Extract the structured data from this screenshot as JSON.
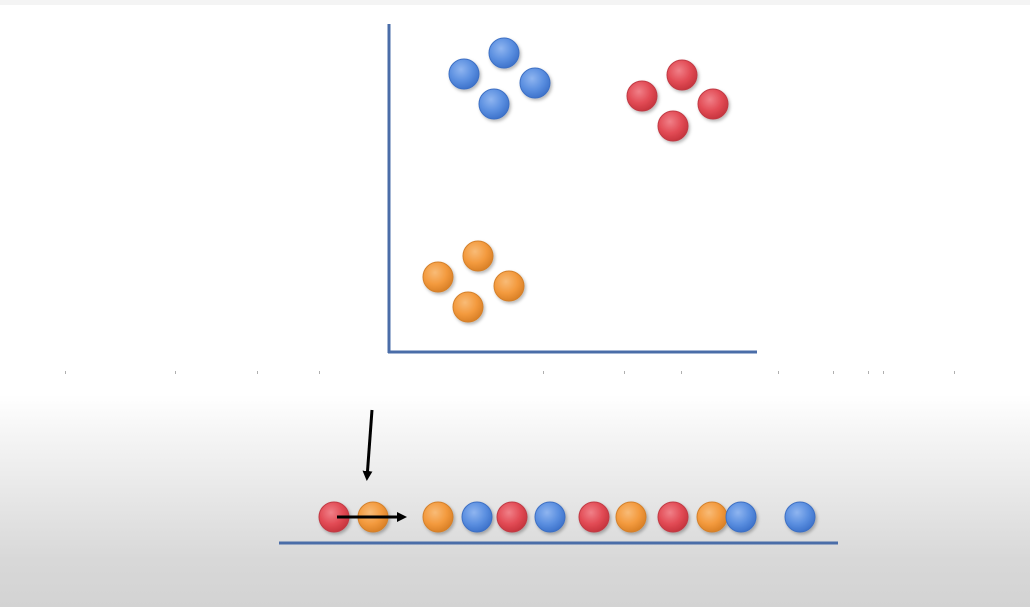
{
  "colors": {
    "axis": "#4a6da8",
    "blue": "#5b8fe0",
    "blue_edge": "#3d6fc4",
    "red": "#e24b55",
    "red_edge": "#c13a44",
    "orange": "#f39a3e",
    "orange_edge": "#d4802b",
    "arrow": "#000000"
  },
  "diagram": {
    "scatter_groups": [
      {
        "color": "blue",
        "count": 4
      },
      {
        "color": "red",
        "count": 4
      },
      {
        "color": "orange",
        "count": 4
      }
    ],
    "sequence": [
      "red",
      "orange",
      "orange",
      "blue",
      "red",
      "blue",
      "red",
      "orange",
      "red",
      "orange",
      "blue",
      "blue"
    ]
  }
}
